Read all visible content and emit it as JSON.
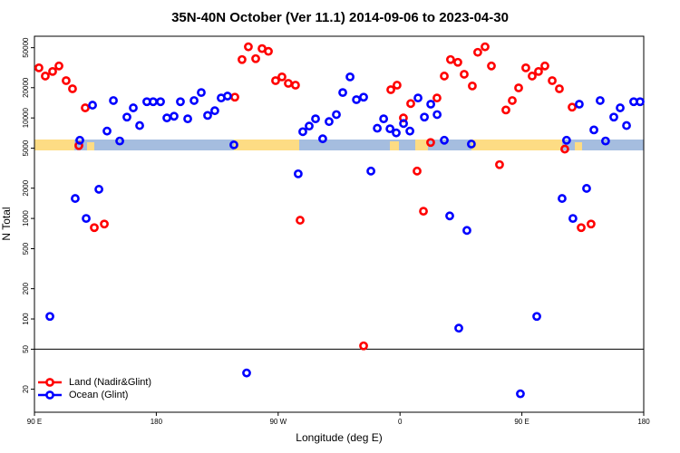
{
  "chart_data": {
    "type": "scatter",
    "title": "35N-40N October (Ver 11.1)   2014-09-06 to 2023-04-30",
    "x_label": "Longitude (deg E)",
    "y_label": "N Total",
    "log_y": true,
    "panel_break": 50,
    "legend": "bottom-left",
    "grid": false,
    "xlim": [
      90,
      540
    ],
    "xticks": [
      {
        "value": 90,
        "label": "90 E"
      },
      {
        "value": 180,
        "label": "180"
      },
      {
        "value": 270,
        "label": "90 W"
      },
      {
        "value": 360,
        "label": "0"
      },
      {
        "value": 450,
        "label": "90 E"
      },
      {
        "value": 540,
        "label": "180"
      }
    ],
    "ylim": [
      11.8,
      65000
    ],
    "yticks": [
      20,
      50,
      100,
      200,
      500,
      1000,
      2000,
      5000,
      10000,
      20000,
      50000
    ],
    "series": [
      {
        "name": "Land (Nadir&Glint)",
        "color": "#ff0000",
        "x": [
          93.3,
          98,
          103.4,
          108.1,
          113.4,
          118.1,
          122.8,
          127.5,
          134.2,
          141.6,
          238,
          243.3,
          248,
          253.4,
          258.1,
          262.8,
          268.1,
          272.8,
          277.5,
          282.8,
          286.2,
          333.1,
          353.2,
          357.8,
          362.5,
          367.9,
          372.6,
          377.3,
          382.6,
          387.3,
          392.7,
          397.3,
          402.7,
          407.4,
          413.4,
          417.4,
          422.8,
          427.5,
          433.5,
          438.2,
          442.9,
          447.6,
          452.9,
          457.6,
          462.3,
          467,
          472.4,
          477.7,
          481.7,
          487.1,
          493.8,
          501.1
        ],
        "values": [
          31500,
          26100,
          29000,
          32900,
          23500,
          19500,
          5300,
          12600,
          810,
          880,
          16100,
          38100,
          51000,
          38900,
          49000,
          46000,
          23500,
          25600,
          22100,
          21200,
          960,
          54,
          19100,
          21200,
          10000,
          13900,
          2960,
          1180,
          5700,
          15800,
          26100,
          38100,
          35800,
          27200,
          20800,
          45000,
          51000,
          32900,
          3430,
          12000,
          14900,
          19900,
          31500,
          26100,
          29000,
          32900,
          23500,
          19500,
          4900,
          12800,
          810,
          880
        ]
      },
      {
        "name": "Ocean (Glint)",
        "color": "#0000ff",
        "x": [
          101.4,
          120.1,
          123.5,
          128.2,
          132.9,
          137.6,
          143.6,
          148.3,
          153,
          158.3,
          163,
          167.7,
          173,
          177.7,
          183.1,
          187.8,
          193.1,
          197.8,
          203.2,
          207.9,
          213.2,
          217.9,
          223.2,
          227.9,
          232.6,
          237.3,
          246.7,
          284.8,
          288.2,
          292.9,
          297.6,
          302.9,
          307.6,
          313,
          317.7,
          323.1,
          327.8,
          333.1,
          338.5,
          343.2,
          347.9,
          352.6,
          357.2,
          362.6,
          367.3,
          373.3,
          378,
          382.7,
          387.4,
          392.7,
          396.7,
          403.4,
          409.4,
          412.7,
          448.9,
          461,
          479.7,
          483,
          487.7,
          492.4,
          497.8,
          503.2,
          507.8,
          511.8,
          517.9,
          522.6,
          527.3,
          532.6,
          537.3
        ],
        "values": [
          106,
          1580,
          6000,
          1000,
          13400,
          1950,
          7400,
          14900,
          5900,
          10200,
          12600,
          8400,
          14500,
          14500,
          14500,
          10000,
          10400,
          14500,
          9800,
          14900,
          17900,
          10600,
          11800,
          15800,
          16500,
          5400,
          29,
          2780,
          7300,
          8300,
          9800,
          6200,
          9200,
          10800,
          17900,
          25600,
          15200,
          16100,
          2960,
          7900,
          9800,
          7800,
          7100,
          8800,
          7400,
          15800,
          10200,
          13700,
          10800,
          6000,
          1060,
          81,
          760,
          5500,
          18,
          106,
          1580,
          6000,
          1000,
          13700,
          1990,
          7600,
          14900,
          5900,
          10200,
          12600,
          8400,
          14500,
          14500
        ]
      }
    ]
  }
}
